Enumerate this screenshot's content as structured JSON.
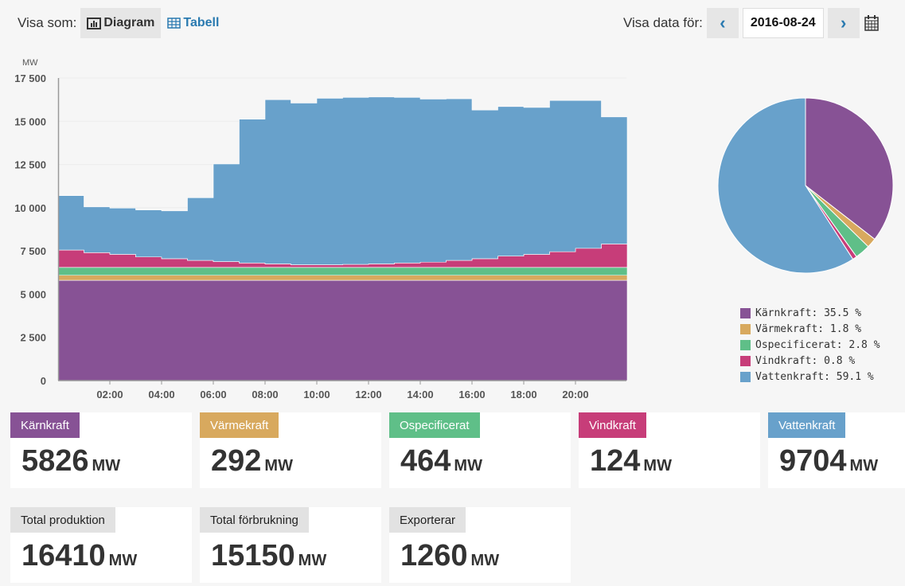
{
  "toolbar": {
    "show_as": "Visa som:",
    "diagram": "Diagram",
    "table": "Tabell",
    "show_data_for": "Visa data för:",
    "date": "2016-08-24",
    "prev": "‹",
    "next": "›"
  },
  "colors": {
    "Kärnkraft": "#875295",
    "Värmekraft": "#d8a95e",
    "Ospecificerat": "#5fbf88",
    "Vindkraft": "#c73d79",
    "Vattenkraft": "#68a1cb"
  },
  "chart_data": [
    {
      "type": "area",
      "stacked": true,
      "unit_label": "MW",
      "ylim": [
        0,
        17500
      ],
      "yticks": [
        "0",
        "2 500",
        "5 000",
        "7 500",
        "10 000",
        "12 500",
        "15 000",
        "17 500"
      ],
      "ytick_values": [
        0,
        2500,
        5000,
        7500,
        10000,
        12500,
        15000,
        17500
      ],
      "xticks": [
        "02:00",
        "04:00",
        "06:00",
        "08:00",
        "10:00",
        "12:00",
        "14:00",
        "16:00",
        "18:00",
        "20:00"
      ],
      "xtick_hours": [
        2,
        4,
        6,
        8,
        10,
        12,
        14,
        16,
        18,
        20
      ],
      "x_hours": [
        0,
        1,
        2,
        3,
        4,
        5,
        6,
        7,
        8,
        9,
        10,
        11,
        12,
        13,
        14,
        15,
        16,
        17,
        18,
        19,
        20,
        21
      ],
      "series": [
        {
          "name": "Kärnkraft",
          "values": [
            5800,
            5800,
            5800,
            5800,
            5800,
            5800,
            5800,
            5800,
            5800,
            5800,
            5800,
            5800,
            5800,
            5800,
            5800,
            5800,
            5800,
            5800,
            5800,
            5800,
            5800,
            5800
          ]
        },
        {
          "name": "Värmekraft",
          "values": [
            290,
            290,
            290,
            290,
            290,
            290,
            290,
            290,
            290,
            290,
            290,
            290,
            290,
            290,
            290,
            290,
            290,
            290,
            290,
            290,
            290,
            290
          ]
        },
        {
          "name": "Ospecificerat",
          "values": [
            460,
            460,
            460,
            460,
            460,
            460,
            460,
            460,
            460,
            460,
            460,
            460,
            460,
            460,
            460,
            460,
            460,
            460,
            460,
            460,
            460,
            460
          ]
        },
        {
          "name": "Vindkraft",
          "values": [
            1000,
            850,
            750,
            600,
            500,
            400,
            330,
            250,
            200,
            150,
            150,
            170,
            200,
            250,
            300,
            400,
            500,
            650,
            750,
            900,
            1100,
            1350
          ]
        },
        {
          "name": "Vattenkraft",
          "values": [
            3150,
            2650,
            2680,
            2720,
            2770,
            3630,
            5650,
            8320,
            9500,
            9350,
            9630,
            9660,
            9650,
            9580,
            9430,
            9350,
            8600,
            8650,
            8500,
            8750,
            8550,
            7350
          ]
        }
      ]
    },
    {
      "type": "pie",
      "slices": [
        {
          "name": "Kärnkraft",
          "value": 35.5,
          "label": "Kärnkraft: 35.5 %"
        },
        {
          "name": "Värmekraft",
          "value": 1.8,
          "label": "Värmekraft: 1.8 %"
        },
        {
          "name": "Ospecificerat",
          "value": 2.8,
          "label": "Ospecificerat: 2.8 %"
        },
        {
          "name": "Vindkraft",
          "value": 0.8,
          "label": "Vindkraft: 0.8 %"
        },
        {
          "name": "Vattenkraft",
          "value": 59.1,
          "label": "Vattenkraft: 59.1 %"
        }
      ]
    }
  ],
  "cards": [
    {
      "label": "Kärnkraft",
      "value": "5826",
      "unit": "MW"
    },
    {
      "label": "Värmekraft",
      "value": "292",
      "unit": "MW"
    },
    {
      "label": "Ospecificerat",
      "value": "464",
      "unit": "MW"
    },
    {
      "label": "Vindkraft",
      "value": "124",
      "unit": "MW"
    },
    {
      "label": "Vattenkraft",
      "value": "9704",
      "unit": "MW"
    }
  ],
  "totals": [
    {
      "label": "Total produktion",
      "value": "16410",
      "unit": "MW"
    },
    {
      "label": "Total förbrukning",
      "value": "15150",
      "unit": "MW"
    },
    {
      "label": "Exporterar",
      "value": "1260",
      "unit": "MW"
    }
  ]
}
